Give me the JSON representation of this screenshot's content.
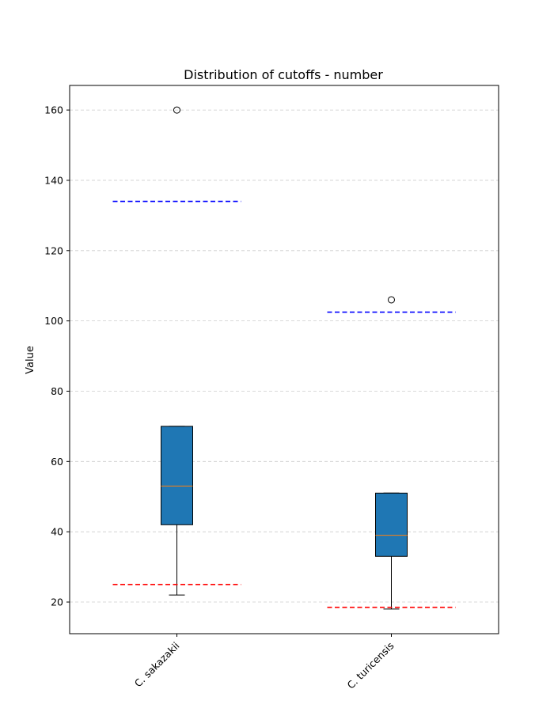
{
  "chart_data": {
    "type": "box",
    "title": "Distribution of cutoffs - number",
    "xlabel": "",
    "ylabel": "Value",
    "ylim": [
      11,
      167
    ],
    "yticks": [
      20,
      40,
      60,
      80,
      100,
      120,
      140,
      160
    ],
    "grid": {
      "y": true,
      "style": "dashed",
      "color": "#cccccc"
    },
    "categories": [
      "C. sakazakii",
      "C. turicensis"
    ],
    "box_color": "#1f77b4",
    "median_color": "#ff7f0e",
    "boxes": [
      {
        "name": "C. sakazakii",
        "whisker_low": 22,
        "q1": 42,
        "median": 53,
        "q3": 70,
        "whisker_high": 70,
        "outliers": [
          160
        ],
        "upper_cutoff": 134,
        "lower_cutoff": 25
      },
      {
        "name": "C. turicensis",
        "whisker_low": 18,
        "q1": 33,
        "median": 39,
        "q3": 51,
        "whisker_high": 51,
        "outliers": [
          106
        ],
        "upper_cutoff": 102.5,
        "lower_cutoff": 18.5
      }
    ],
    "upper_line_color": "#0000ff",
    "lower_line_color": "#ff0000"
  }
}
